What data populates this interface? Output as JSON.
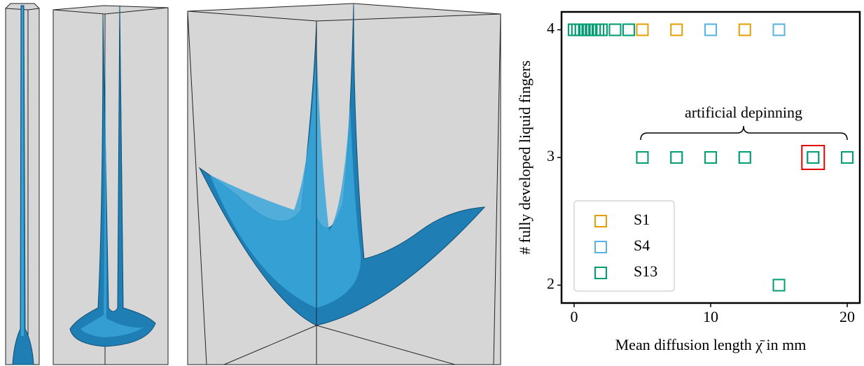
{
  "chart_data": {
    "type": "scatter",
    "x_label": "Mean diffusion length χ̄ in mm",
    "y_label": "# fully developed liquid fingers",
    "annotation": "artificial depinning",
    "highlight": {
      "x": 17.5,
      "y": 3
    },
    "xlim": [
      -0.92,
      20.92
    ],
    "xticks": [
      0,
      10,
      20
    ],
    "ylim": [
      1.86,
      4.14
    ],
    "yticks": [
      2,
      3,
      4
    ],
    "legend": "lower left",
    "series": [
      {
        "name": "S1",
        "color": "#e69f00",
        "x": [
          0,
          0.25,
          0.5,
          0.75,
          1,
          1.25,
          1.5,
          1.75,
          2,
          3,
          4,
          5,
          7.5,
          10,
          12.5,
          15,
          17.5,
          20
        ],
        "values": [
          4,
          4,
          4,
          4,
          4,
          4,
          4,
          4,
          4,
          4,
          4,
          4,
          4,
          4,
          4,
          4,
          3,
          3
        ]
      },
      {
        "name": "S4",
        "color": "#56b4e9",
        "x": [
          0,
          0.25,
          0.5,
          0.75,
          1,
          1.25,
          1.5,
          1.75,
          2,
          3,
          4,
          10,
          15,
          5,
          7.5,
          12.5,
          17.5,
          20
        ],
        "values": [
          4,
          4,
          4,
          4,
          4,
          4,
          4,
          4,
          4,
          4,
          4,
          4,
          4,
          3,
          3,
          3,
          3,
          3
        ]
      },
      {
        "name": "S13",
        "color": "#009e73",
        "x": [
          0,
          0.25,
          0.5,
          0.75,
          1,
          1.25,
          1.5,
          1.75,
          2,
          3,
          4,
          5,
          7.5,
          10,
          12.5,
          17.5,
          20,
          15
        ],
        "values": [
          4,
          4,
          4,
          4,
          4,
          4,
          4,
          4,
          4,
          4,
          4,
          3,
          3,
          3,
          3,
          3,
          3,
          2
        ]
      }
    ]
  }
}
